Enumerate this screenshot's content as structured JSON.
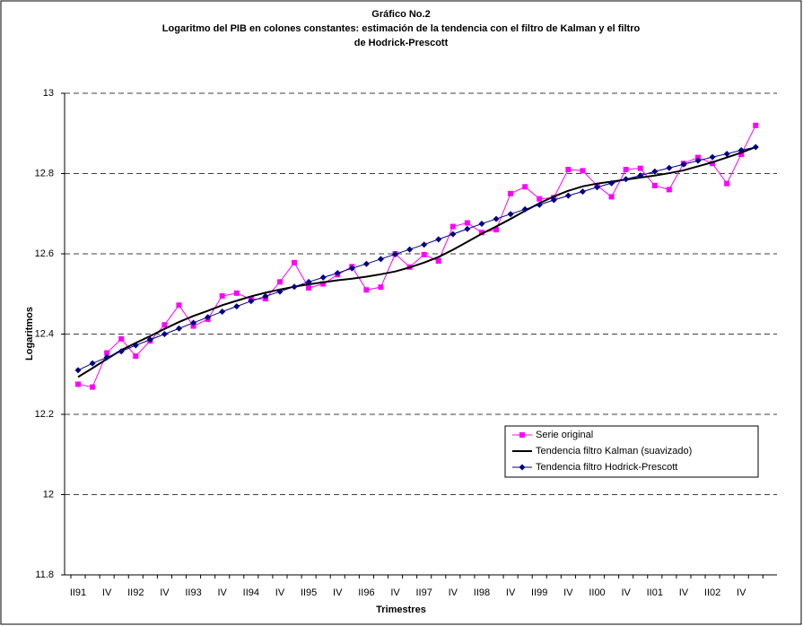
{
  "chart_data": {
    "type": "line",
    "title": "Gráfico No.2",
    "subtitle": [
      "Logaritmo del PIB en colones constantes:  estimación de la tendencia con el filtro de Kalman y el filtro",
      "de Hodrick-Prescott"
    ],
    "x_label": "Trimestres",
    "y_label": "Logaritmos",
    "categories": [
      "II91",
      null,
      "IV",
      null,
      "II92",
      null,
      "IV",
      null,
      "II93",
      null,
      "IV",
      null,
      "II94",
      null,
      "IV",
      null,
      "II95",
      null,
      "IV",
      null,
      "II96",
      null,
      "IV",
      null,
      "II97",
      null,
      "IV",
      null,
      "II98",
      null,
      "IV",
      null,
      "II99",
      null,
      "IV",
      null,
      "II00",
      null,
      "IV",
      null,
      "II01",
      null,
      "IV",
      null,
      "II02",
      null,
      "IV",
      null
    ],
    "series": [
      {
        "name": "Serie original",
        "color": "#ff00ff",
        "marker": "square",
        "values": [
          12.275,
          12.268,
          12.353,
          12.388,
          12.345,
          12.383,
          12.423,
          12.472,
          12.42,
          12.437,
          12.495,
          12.502,
          12.487,
          12.488,
          12.53,
          12.578,
          12.515,
          12.525,
          12.548,
          12.568,
          12.51,
          12.517,
          12.6,
          12.567,
          12.598,
          12.582,
          12.668,
          12.677,
          12.653,
          12.66,
          12.75,
          12.767,
          12.737,
          12.74,
          12.81,
          12.807,
          12.77,
          12.742,
          12.81,
          12.813,
          12.77,
          12.76,
          12.825,
          12.84,
          12.825,
          12.775,
          12.848,
          12.92
        ]
      },
      {
        "name": "Tendencia filtro Kalman (suavizado)",
        "color": "#000000",
        "marker": "none",
        "values": [
          12.293,
          12.315,
          12.338,
          12.36,
          12.378,
          12.395,
          12.413,
          12.43,
          12.445,
          12.458,
          12.472,
          12.483,
          12.494,
          12.503,
          12.511,
          12.518,
          12.524,
          12.529,
          12.534,
          12.538,
          12.543,
          12.549,
          12.556,
          12.566,
          12.578,
          12.592,
          12.61,
          12.63,
          12.65,
          12.668,
          12.687,
          12.707,
          12.726,
          12.743,
          12.757,
          12.768,
          12.775,
          12.78,
          12.785,
          12.79,
          12.795,
          12.801,
          12.808,
          12.818,
          12.828,
          12.84,
          12.852,
          12.866
        ]
      },
      {
        "name": "Tendencia filtro Hodrick-Prescott",
        "color": "#000080",
        "marker": "diamond",
        "values": [
          12.31,
          12.327,
          12.342,
          12.357,
          12.372,
          12.386,
          12.4,
          12.414,
          12.428,
          12.442,
          12.456,
          12.469,
          12.482,
          12.494,
          12.506,
          12.518,
          12.53,
          12.541,
          12.552,
          12.564,
          12.575,
          12.587,
          12.599,
          12.611,
          12.623,
          12.636,
          12.649,
          12.662,
          12.675,
          12.687,
          12.699,
          12.711,
          12.722,
          12.734,
          12.745,
          12.755,
          12.766,
          12.776,
          12.786,
          12.795,
          12.805,
          12.814,
          12.823,
          12.832,
          12.841,
          12.849,
          12.858,
          12.866
        ]
      }
    ],
    "ylim": [
      11.8,
      13
    ],
    "yticks": [
      11.8,
      12,
      12.2,
      12.4,
      12.6,
      12.8,
      13
    ],
    "grid": true,
    "legend_position": "lower right"
  }
}
